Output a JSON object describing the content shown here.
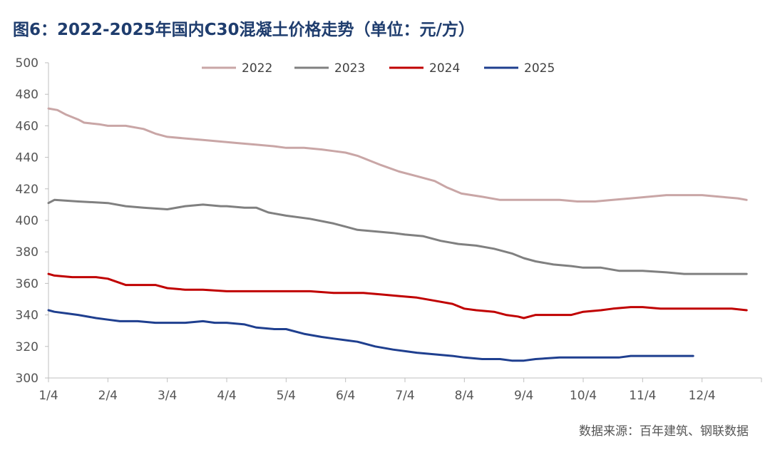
{
  "title": "图6：2022-2025年国内C30混凝土价格走势（单位：元/方）",
  "source": "数据来源：百年建筑、钢联数据",
  "chart_data": {
    "type": "line",
    "title": "图6：2022-2025年国内C30混凝土价格走势（单位：元/方）",
    "xlabel": "",
    "ylabel": "元/方",
    "ylim": [
      300,
      500
    ],
    "yticks": [
      300,
      320,
      340,
      360,
      380,
      400,
      420,
      440,
      460,
      480,
      500
    ],
    "xlim": [
      0,
      12
    ],
    "xtick_labels": [
      "1/4",
      "2/4",
      "3/4",
      "4/4",
      "5/4",
      "6/4",
      "7/4",
      "8/4",
      "9/4",
      "10/4",
      "11/4",
      "12/4"
    ],
    "grid": false,
    "legend_position": "top-center",
    "series": [
      {
        "name": "2022",
        "color": "#c9a6a6",
        "x": [
          0.0,
          0.15,
          0.3,
          0.5,
          0.6,
          0.85,
          1.0,
          1.3,
          1.6,
          1.8,
          2.0,
          2.3,
          2.6,
          2.9,
          3.2,
          3.5,
          3.8,
          4.0,
          4.3,
          4.6,
          4.8,
          5.0,
          5.2,
          5.4,
          5.6,
          5.9,
          6.2,
          6.5,
          6.7,
          6.95,
          7.3,
          7.6,
          7.8,
          8.0,
          8.3,
          8.6,
          8.9,
          9.2,
          9.5,
          9.8,
          10.1,
          10.4,
          10.7,
          11.0,
          11.3,
          11.6,
          11.75
        ],
        "values": [
          471,
          470,
          467,
          464,
          462,
          461,
          460,
          460,
          458,
          455,
          453,
          452,
          451,
          450,
          449,
          448,
          447,
          446,
          446,
          445,
          444,
          443,
          441,
          438,
          435,
          431,
          428,
          425,
          421,
          417,
          415,
          413,
          413,
          413,
          413,
          413,
          412,
          412,
          413,
          414,
          415,
          416,
          416,
          416,
          415,
          414,
          413
        ]
      },
      {
        "name": "2023",
        "color": "#808080",
        "x": [
          0.0,
          0.1,
          0.5,
          1.0,
          1.3,
          1.6,
          2.0,
          2.3,
          2.6,
          2.9,
          3.0,
          3.3,
          3.5,
          3.7,
          4.0,
          4.4,
          4.8,
          5.0,
          5.2,
          5.5,
          5.8,
          6.0,
          6.3,
          6.6,
          6.9,
          7.2,
          7.5,
          7.8,
          8.0,
          8.2,
          8.5,
          8.8,
          9.0,
          9.3,
          9.6,
          10.0,
          10.4,
          10.7,
          11.0,
          11.4,
          11.75
        ],
        "values": [
          411,
          413,
          412,
          411,
          409,
          408,
          407,
          409,
          410,
          409,
          409,
          408,
          408,
          405,
          403,
          401,
          398,
          396,
          394,
          393,
          392,
          391,
          390,
          387,
          385,
          384,
          382,
          379,
          376,
          374,
          372,
          371,
          370,
          370,
          368,
          368,
          367,
          366,
          366,
          366,
          366
        ]
      },
      {
        "name": "2024",
        "color": "#c00000",
        "x": [
          0.0,
          0.1,
          0.4,
          0.8,
          1.0,
          1.3,
          1.6,
          1.8,
          2.0,
          2.3,
          2.6,
          3.0,
          3.5,
          4.0,
          4.4,
          4.8,
          5.0,
          5.3,
          5.6,
          5.9,
          6.2,
          6.5,
          6.8,
          7.0,
          7.2,
          7.5,
          7.7,
          7.9,
          8.0,
          8.2,
          8.5,
          8.8,
          9.0,
          9.3,
          9.5,
          9.8,
          10.0,
          10.3,
          10.6,
          10.9,
          11.2,
          11.5,
          11.75
        ],
        "values": [
          366,
          365,
          364,
          364,
          363,
          359,
          359,
          359,
          357,
          356,
          356,
          355,
          355,
          355,
          355,
          354,
          354,
          354,
          353,
          352,
          351,
          349,
          347,
          344,
          343,
          342,
          340,
          339,
          338,
          340,
          340,
          340,
          342,
          343,
          344,
          345,
          345,
          344,
          344,
          344,
          344,
          344,
          343
        ]
      },
      {
        "name": "2025",
        "color": "#1f3f8f",
        "x": [
          0.0,
          0.1,
          0.3,
          0.5,
          0.8,
          1.0,
          1.2,
          1.5,
          1.8,
          2.0,
          2.3,
          2.6,
          2.8,
          3.0,
          3.3,
          3.5,
          3.8,
          4.0,
          4.3,
          4.6,
          4.8,
          5.0,
          5.2,
          5.5,
          5.8,
          6.0,
          6.2,
          6.5,
          6.8,
          7.0,
          7.3,
          7.6,
          7.8,
          8.0,
          8.2,
          8.6,
          8.9,
          9.0,
          9.3,
          9.6,
          9.8,
          10.0,
          10.3,
          10.6,
          10.85
        ],
        "values": [
          343,
          342,
          341,
          340,
          338,
          337,
          336,
          336,
          335,
          335,
          335,
          336,
          335,
          335,
          334,
          332,
          331,
          331,
          328,
          326,
          325,
          324,
          323,
          320,
          318,
          317,
          316,
          315,
          314,
          313,
          312,
          312,
          311,
          311,
          312,
          313,
          313,
          313,
          313,
          313,
          314,
          314,
          314,
          314,
          314
        ]
      }
    ]
  }
}
